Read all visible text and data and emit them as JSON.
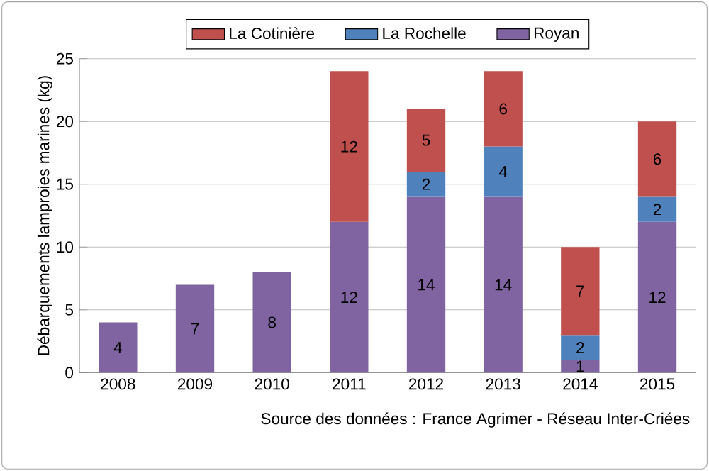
{
  "chart_data": {
    "type": "bar",
    "stacked": true,
    "ylabel": "Débarquements lamproies marines (kg)",
    "categories": [
      "2008",
      "2009",
      "2010",
      "2011",
      "2012",
      "2013",
      "2014",
      "2015"
    ],
    "series": [
      {
        "name": "Royan",
        "color": "#8064a2",
        "values": [
          4,
          7,
          8,
          12,
          14,
          14,
          1,
          12
        ]
      },
      {
        "name": "La Rochelle",
        "color": "#4f81bd",
        "values": [
          null,
          null,
          null,
          null,
          2,
          4,
          2,
          2
        ]
      },
      {
        "name": "La Cotinière",
        "color": "#c0504d",
        "values": [
          null,
          null,
          null,
          12,
          5,
          6,
          7,
          6
        ]
      }
    ],
    "ylim": [
      0,
      25
    ],
    "yticks": [
      0,
      5,
      10,
      15,
      20,
      25
    ],
    "grid": "y",
    "legend": "top",
    "data_labels": true,
    "annotations": [
      "Source des données : France Agrimer - Réseau Inter-Criées"
    ]
  }
}
